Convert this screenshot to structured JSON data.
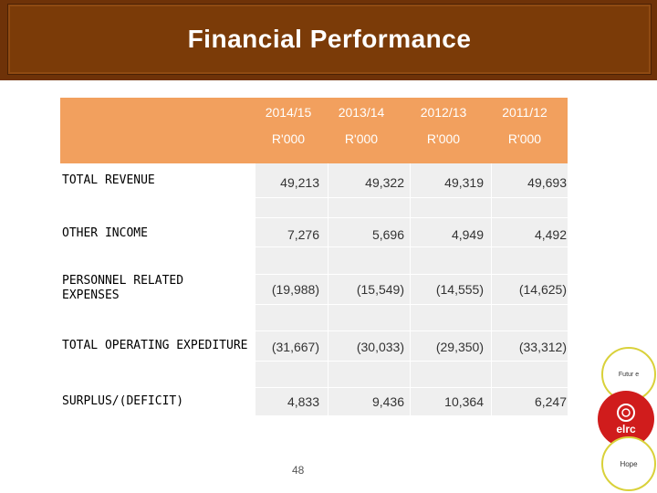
{
  "title": "Financial Performance",
  "columns": [
    {
      "year": "2014/15",
      "unit": "R'000"
    },
    {
      "year": "2013/14",
      "unit": "R'000"
    },
    {
      "year": "2012/13",
      "unit": "R'000"
    },
    {
      "year": "2011/12",
      "unit": "R'000"
    }
  ],
  "rows": [
    {
      "label": "TOTAL REVENUE",
      "values": [
        "49,213",
        "49,322",
        "49,319",
        "49,693"
      ]
    },
    {
      "label": "OTHER INCOME",
      "values": [
        "7,276",
        "5,696",
        "4,949",
        "4,492"
      ]
    },
    {
      "label": "PERSONNEL RELATED EXPENSES",
      "values": [
        "(19,988)",
        "(15,549)",
        "(14,555)",
        "(14,625)"
      ]
    },
    {
      "label": "TOTAL OPERATING EXPEDITURE",
      "values": [
        "(31,667)",
        "(30,033)",
        "(29,350)",
        "(33,312)"
      ]
    },
    {
      "label": "SURPLUS/(DEFICIT)",
      "values": [
        "4,833",
        "9,436",
        "10,364",
        "6,247"
      ]
    }
  ],
  "page_number": "48",
  "logos": {
    "future_text": "Futur e",
    "elrc_text": "elrc",
    "hope_text": "Hope"
  },
  "colors": {
    "banner": "#7b3b08",
    "header_band": "#f2a05e",
    "elrc_red": "#d01c1c"
  }
}
